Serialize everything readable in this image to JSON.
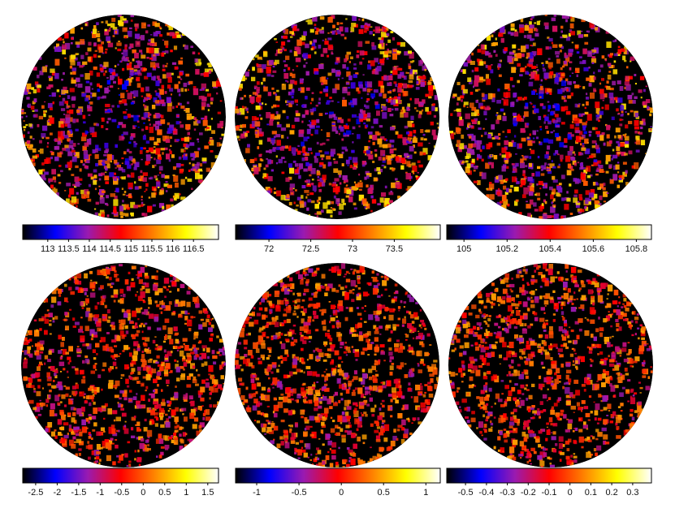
{
  "colormap": [
    "#000000",
    "#0000ff",
    "#9a1ab0",
    "#ff0000",
    "#ff8000",
    "#ffff00",
    "#ffffff"
  ],
  "map_background": "#000000",
  "panels": [
    {
      "id": "top-left",
      "colorbar": {
        "min": 112.4,
        "max": 117.1,
        "ticks": [
          113,
          113.5,
          114,
          114.5,
          115,
          115.5,
          116,
          116.5
        ],
        "tick_labels": [
          "113",
          "113.5",
          "114",
          "114.5",
          "115",
          "115.5",
          "116",
          "116.5"
        ]
      },
      "map_tone": "cool-hot"
    },
    {
      "id": "top-middle",
      "colorbar": {
        "min": 71.6,
        "max": 74.05,
        "ticks": [
          72,
          72.5,
          73,
          73.5
        ],
        "tick_labels": [
          "72",
          "72.5",
          "73",
          "73.5"
        ]
      },
      "map_tone": "cool-hot"
    },
    {
      "id": "top-right",
      "colorbar": {
        "min": 104.92,
        "max": 105.87,
        "ticks": [
          105,
          105.2,
          105.4,
          105.6,
          105.8
        ],
        "tick_labels": [
          "105",
          "105.2",
          "105.4",
          "105.6",
          "105.8"
        ]
      },
      "map_tone": "cool-hot"
    },
    {
      "id": "bottom-left",
      "colorbar": {
        "min": -2.8,
        "max": 1.75,
        "ticks": [
          -2.5,
          -2,
          -1.5,
          -1,
          -0.5,
          0,
          0.5,
          1,
          1.5
        ],
        "tick_labels": [
          "-2.5",
          "-2",
          "-1.5",
          "-1",
          "-0.5",
          "0",
          "0.5",
          "1",
          "1.5"
        ]
      },
      "map_tone": "warm"
    },
    {
      "id": "bottom-middle",
      "colorbar": {
        "min": -1.25,
        "max": 1.17,
        "ticks": [
          -1,
          -0.5,
          0,
          0.5,
          1
        ],
        "tick_labels": [
          "-1",
          "-0.5",
          "0",
          "0.5",
          "1"
        ]
      },
      "map_tone": "warm"
    },
    {
      "id": "bottom-right",
      "colorbar": {
        "min": -0.59,
        "max": 0.39,
        "ticks": [
          -0.5,
          -0.4,
          -0.3,
          -0.2,
          -0.1,
          0,
          0.1,
          0.2,
          0.3
        ],
        "tick_labels": [
          "-0.5",
          "-0.4",
          "-0.3",
          "-0.2",
          "-0.1",
          "0",
          "0.1",
          "0.2",
          "0.3"
        ]
      },
      "map_tone": "warm"
    }
  ]
}
